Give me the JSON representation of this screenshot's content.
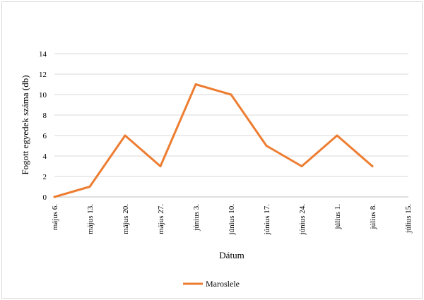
{
  "chart_data": {
    "type": "line",
    "xlabel": "Dátum",
    "ylabel": "Fogott egyedek száma (db)",
    "categories": [
      "május 6.",
      "május 13.",
      "május 20.",
      "május 27.",
      "június 3.",
      "június 10.",
      "június 17.",
      "június 24.",
      "július 1.",
      "július 8.",
      "július 15."
    ],
    "yticks": [
      "0",
      "2",
      "4",
      "6",
      "8",
      "10",
      "12",
      "14"
    ],
    "ylim": [
      0,
      14
    ],
    "grid": true,
    "legend_position": "bottom",
    "series": [
      {
        "name": "Maroslele",
        "color": "#ED7D31",
        "values": [
          0,
          1,
          6,
          3,
          11,
          10,
          5,
          3,
          6,
          3,
          null
        ]
      }
    ]
  }
}
